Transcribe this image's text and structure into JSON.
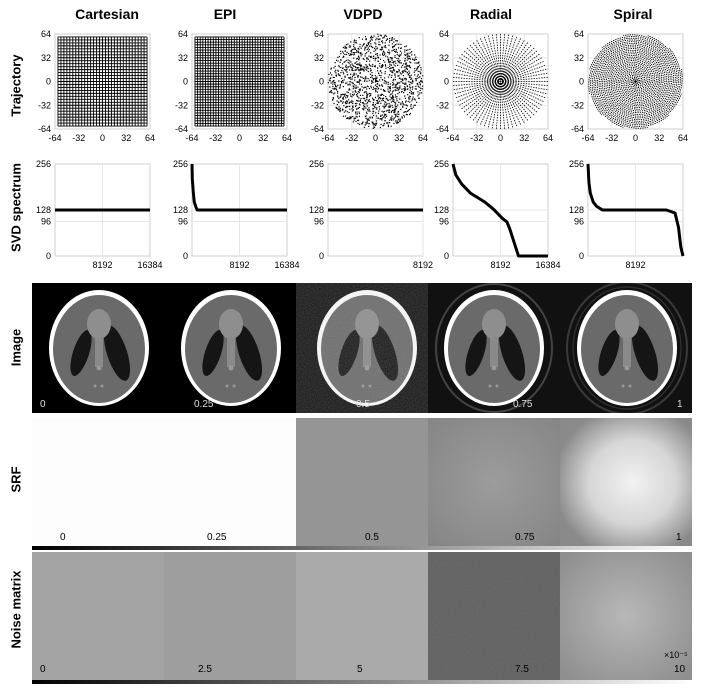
{
  "columns": [
    "Cartesian",
    "EPI",
    "VDPD",
    "Radial",
    "Spiral"
  ],
  "row_labels": {
    "trajectory": "Trajectory",
    "svd": "SVD spectrum",
    "image": "Image",
    "srf": "SRF",
    "noise": "Noise matrix"
  },
  "image_colorbar_labels": [
    "0",
    "0.25",
    "0.5",
    "0.75",
    "1"
  ],
  "srf_colorbar_labels": [
    "0",
    "0.25",
    "0.5",
    "0.75",
    "1"
  ],
  "noise_colorbar_labels": [
    "0",
    "2.5",
    "5",
    "7.5",
    "10"
  ],
  "noise_exponent": "×10⁻⁵",
  "chart_data": [
    {
      "type": "scatter",
      "row": "Trajectory",
      "xlim": [
        -64,
        64
      ],
      "ylim": [
        -64,
        64
      ],
      "xticks": [
        "-64",
        "-32",
        "0",
        "32",
        "64"
      ],
      "yticks": [
        "64",
        "32",
        "0",
        "-32",
        "-64"
      ],
      "grid": true,
      "panels": [
        {
          "name": "Cartesian",
          "pattern": "grid"
        },
        {
          "name": "EPI",
          "pattern": "grid-dense"
        },
        {
          "name": "VDPD",
          "pattern": "variable-density-poisson-disc"
        },
        {
          "name": "Radial",
          "pattern": "radial-spokes"
        },
        {
          "name": "Spiral",
          "pattern": "spiral-interleaves"
        }
      ]
    },
    {
      "type": "line",
      "row": "SVD spectrum",
      "ylim": [
        0,
        256
      ],
      "yticks": [
        "256",
        "128",
        "96",
        "0"
      ],
      "grid": true,
      "panels": [
        {
          "name": "Cartesian",
          "xlim": [
            0,
            16384
          ],
          "xticks": [
            "8192",
            "16384"
          ],
          "x": [
            0,
            16384
          ],
          "y": [
            128,
            128
          ]
        },
        {
          "name": "EPI",
          "xlim": [
            0,
            16384
          ],
          "xticks": [
            "8192",
            "16384"
          ],
          "x": [
            0,
            60,
            200,
            400,
            700,
            900,
            16384
          ],
          "y": [
            256,
            215,
            180,
            150,
            135,
            128,
            128
          ]
        },
        {
          "name": "VDPD",
          "xlim": [
            0,
            8192
          ],
          "xticks": [
            "8192"
          ],
          "x": [
            0,
            8192
          ],
          "y": [
            128,
            128
          ]
        },
        {
          "name": "Radial",
          "xlim": [
            0,
            16384
          ],
          "xticks": [
            "8192",
            "16384"
          ],
          "x": [
            0,
            500,
            1500,
            3000,
            4500,
            5500,
            7000,
            8500,
            9300,
            9800,
            10200,
            10700,
            11300,
            16384
          ],
          "y": [
            256,
            225,
            200,
            175,
            160,
            150,
            130,
            105,
            95,
            75,
            55,
            30,
            0,
            0
          ]
        },
        {
          "name": "Spiral",
          "xlim": [
            0,
            16384
          ],
          "xticks": [
            "8192"
          ],
          "x": [
            0,
            150,
            400,
            900,
            1500,
            2500,
            13500,
            15000,
            15600,
            16000,
            16384
          ],
          "y": [
            256,
            205,
            175,
            150,
            138,
            128,
            128,
            120,
            80,
            25,
            0
          ]
        }
      ]
    }
  ]
}
